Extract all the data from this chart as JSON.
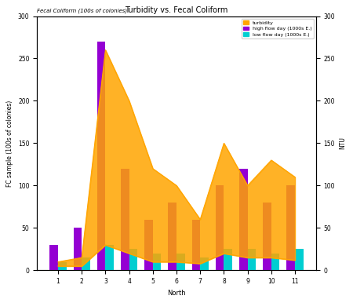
{
  "title": "Fecal Coliform (100s of colonies)",
  "title2": "Turbidity vs. Fecal Coliform",
  "categories": [
    "1",
    "2",
    "3",
    "4",
    "5",
    "6",
    "7",
    "8",
    "9",
    "10",
    "11"
  ],
  "high_flow_fc": [
    30,
    50,
    270,
    120,
    60,
    80,
    60,
    100,
    120,
    80,
    100
  ],
  "low_flow_fc": [
    10,
    15,
    30,
    25,
    20,
    20,
    15,
    25,
    25,
    20,
    25
  ],
  "turbidity_high": [
    10,
    15,
    260,
    200,
    120,
    100,
    60,
    150,
    100,
    130,
    110
  ],
  "turbidity_low": [
    5,
    5,
    30,
    20,
    10,
    10,
    8,
    20,
    15,
    15,
    12
  ],
  "high_flow_color": "#9400D3",
  "low_flow_color": "#00CED1",
  "turbidity_color": "#FFA500",
  "background_color": "#ffffff",
  "bar_width": 0.35,
  "ylim_fc": [
    0,
    300
  ],
  "ylim_turb": [
    0,
    300
  ],
  "xlabel": "North",
  "ylabel_left": "FC sample (100s of colonies)",
  "ylabel_right": "NTU",
  "legend_turbidity": "turbidity",
  "legend_high": "high flow day (1000s E.)",
  "legend_low": "low flow day (1000s E.)"
}
